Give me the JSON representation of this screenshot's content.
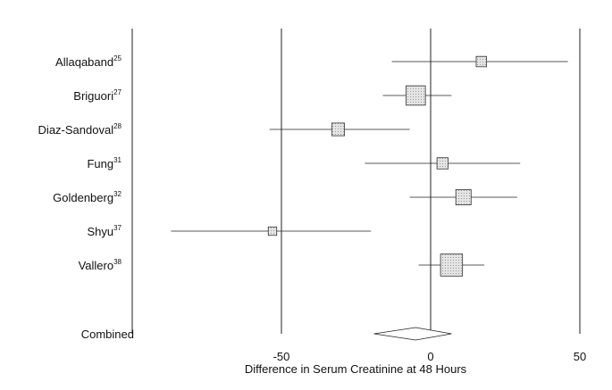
{
  "chart_data": {
    "type": "forest",
    "xlabel": "Difference in Serum Creatinine at 48 Hours",
    "xlim": [
      -100,
      50
    ],
    "x_ticks": [
      -50,
      0,
      50
    ],
    "x_tick_labels": [
      "-50",
      "0",
      "50"
    ],
    "reference_lines": [
      -100,
      -50,
      0,
      50
    ],
    "grid": false,
    "studies": [
      {
        "name": "Allaqaband",
        "ref": "25",
        "estimate": 17,
        "ci_low": -13,
        "ci_high": 46,
        "weight": 0.6
      },
      {
        "name": "Briguori",
        "ref": "27",
        "estimate": -5,
        "ci_low": -16,
        "ci_high": 7,
        "weight": 2.1
      },
      {
        "name": "Diaz-Sandoval",
        "ref": "28",
        "estimate": -31,
        "ci_low": -54,
        "ci_high": -7,
        "weight": 0.9
      },
      {
        "name": "Fung",
        "ref": "31",
        "estimate": 4,
        "ci_low": -22,
        "ci_high": 30,
        "weight": 0.7
      },
      {
        "name": "Goldenberg",
        "ref": "32",
        "estimate": 11,
        "ci_low": -7,
        "ci_high": 29,
        "weight": 1.3
      },
      {
        "name": "Shyu",
        "ref": "37",
        "estimate": -53,
        "ci_low": -87,
        "ci_high": -20,
        "weight": 0.4
      },
      {
        "name": "Vallero",
        "ref": "38",
        "estimate": 7,
        "ci_low": -4,
        "ci_high": 18,
        "weight": 2.7
      }
    ],
    "combined": {
      "name": "Combined",
      "estimate": -5,
      "ci_low": -19,
      "ci_high": 7
    },
    "colors": {
      "line": "#222222",
      "box_fill": "#dedede",
      "box_stroke": "#333333",
      "pattern_dot": "#9a9a9a"
    }
  }
}
